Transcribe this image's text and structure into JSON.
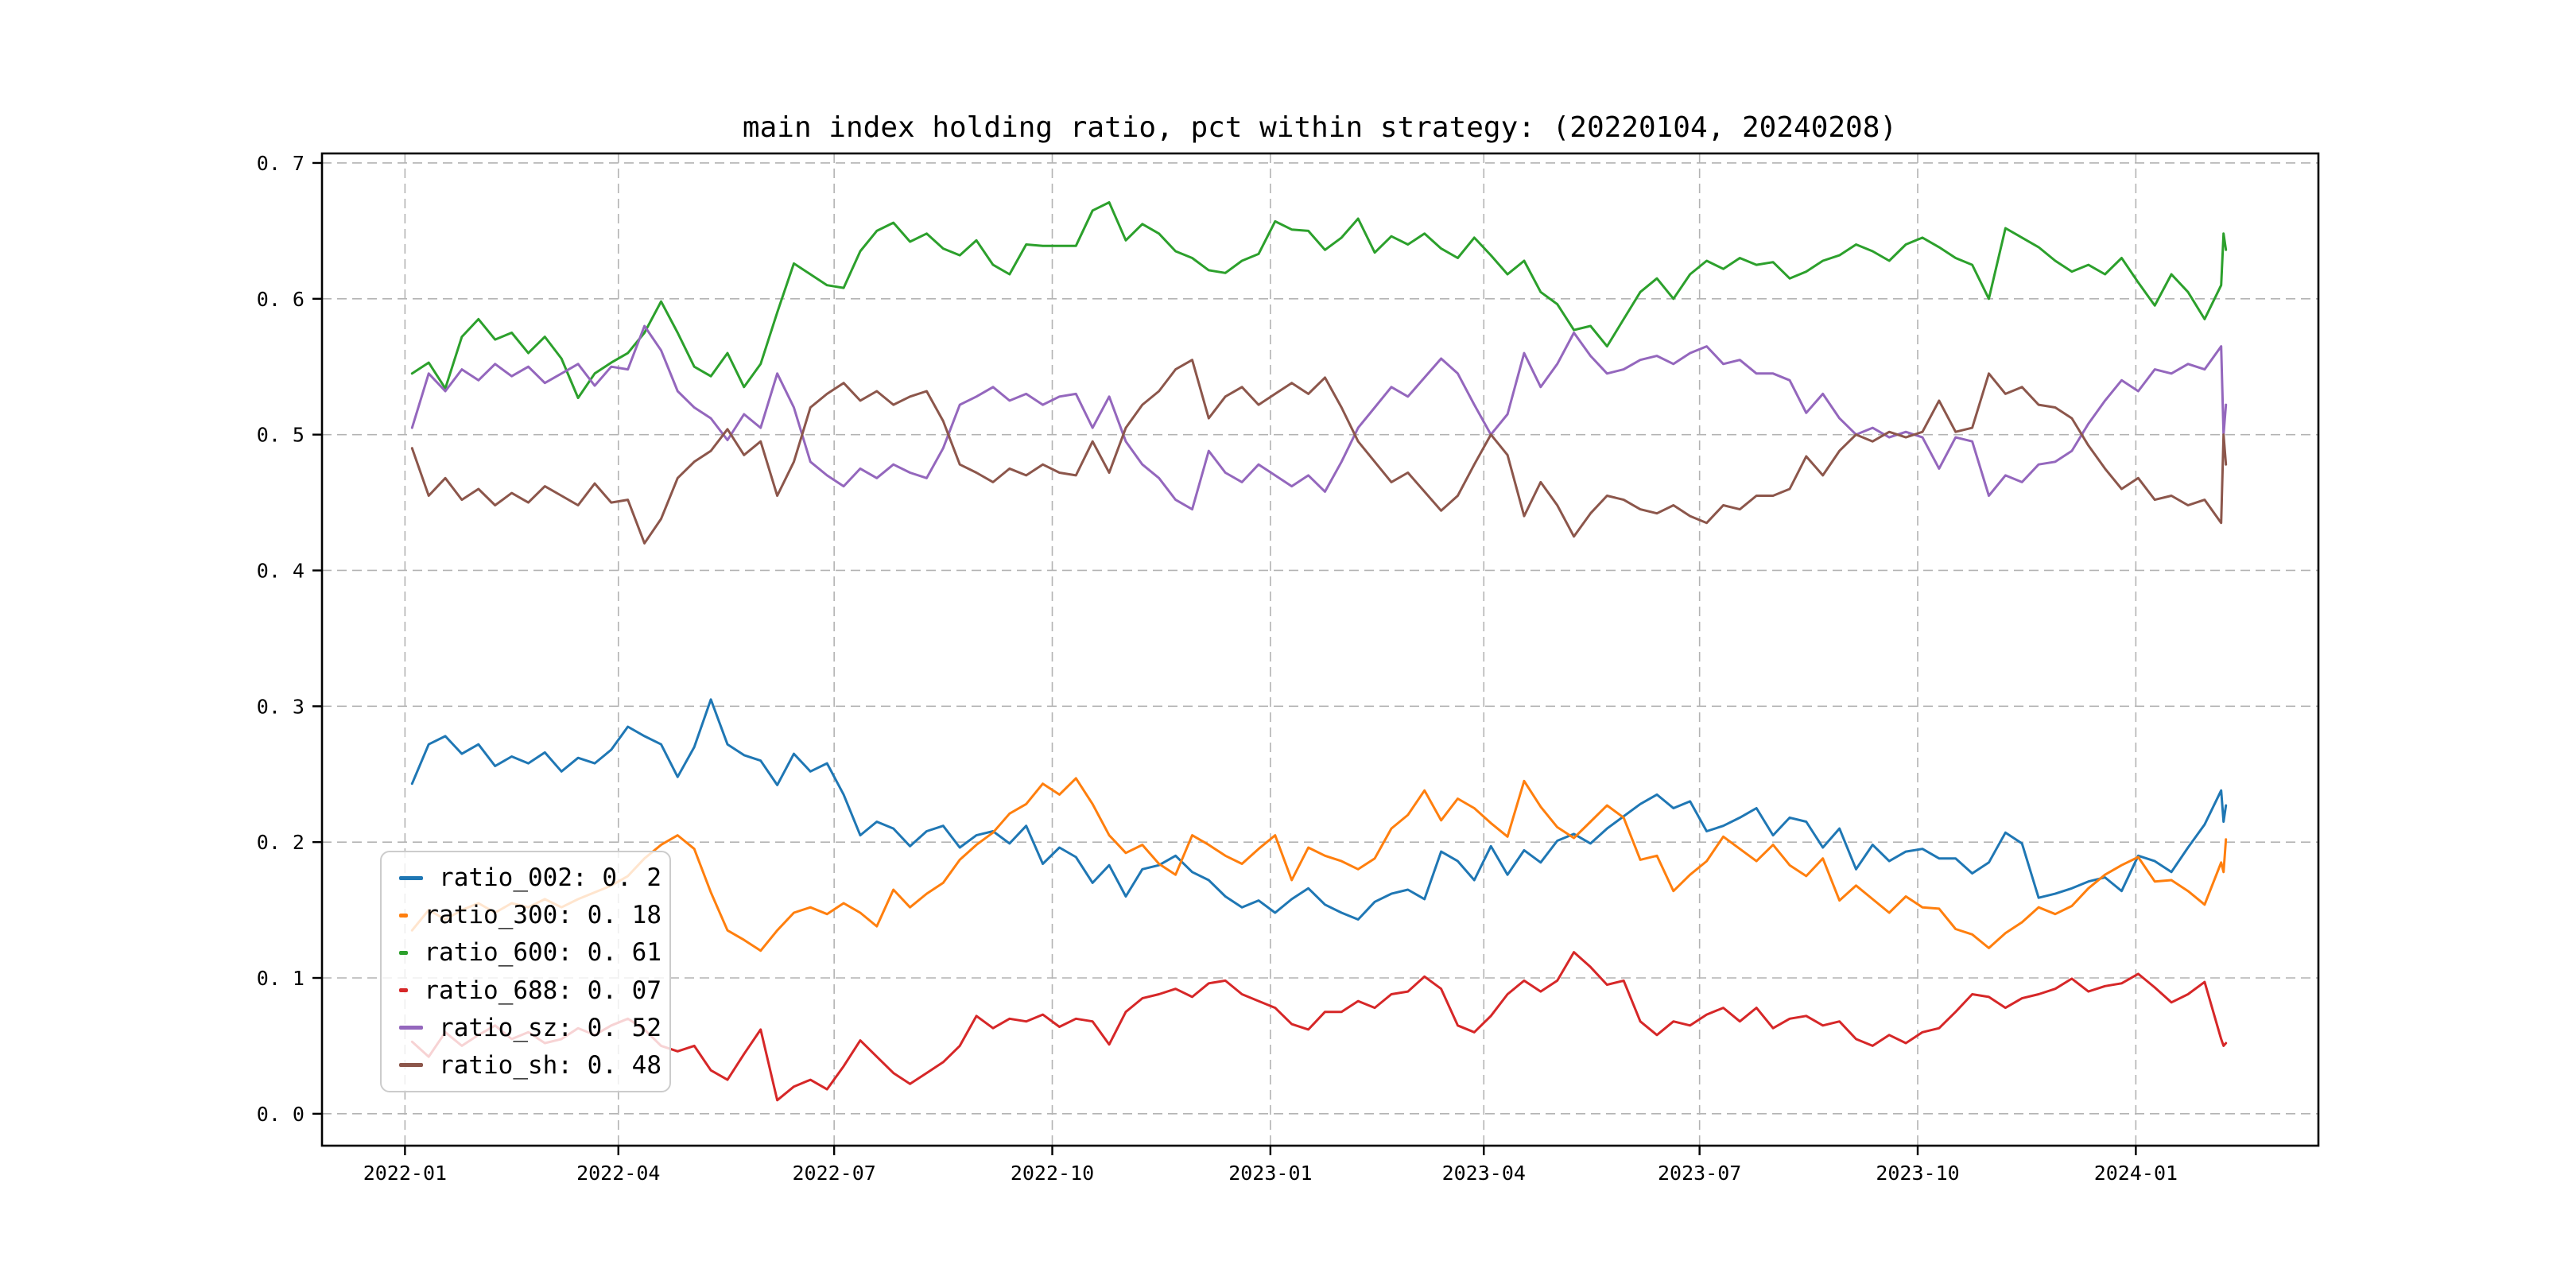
{
  "chart_data": {
    "type": "line",
    "title": "main index holding ratio, pct within strategy: (20220104, 20240208)",
    "date_range_shown_in_title": [
      "20220104",
      "20240208"
    ],
    "grid": "dashed",
    "legend_position": "lower-left",
    "xlabel": "",
    "ylabel": "",
    "xlim_days_since_2022_01_01": [
      -35,
      807
    ],
    "ylim": [
      -0.0235,
      0.707
    ],
    "x_ticks": [
      {
        "day": 0,
        "label": "2022-01"
      },
      {
        "day": 90,
        "label": "2022-04"
      },
      {
        "day": 181,
        "label": "2022-07"
      },
      {
        "day": 273,
        "label": "2022-10"
      },
      {
        "day": 365,
        "label": "2023-01"
      },
      {
        "day": 455,
        "label": "2023-04"
      },
      {
        "day": 546,
        "label": "2023-07"
      },
      {
        "day": 638,
        "label": "2023-10"
      },
      {
        "day": 730,
        "label": "2024-01"
      }
    ],
    "y_ticks": [
      {
        "value": 0.0,
        "label": "0. 0"
      },
      {
        "value": 0.1,
        "label": "0. 1"
      },
      {
        "value": 0.2,
        "label": "0. 2"
      },
      {
        "value": 0.3,
        "label": "0. 3"
      },
      {
        "value": 0.4,
        "label": "0. 4"
      },
      {
        "value": 0.5,
        "label": "0. 5"
      },
      {
        "value": 0.6,
        "label": "0. 6"
      },
      {
        "value": 0.7,
        "label": "0. 7"
      }
    ],
    "days": [
      3,
      10,
      17,
      24,
      31,
      38,
      45,
      52,
      59,
      66,
      73,
      80,
      87,
      94,
      101,
      108,
      115,
      122,
      129,
      136,
      143,
      150,
      157,
      164,
      171,
      178,
      185,
      192,
      199,
      206,
      213,
      220,
      227,
      234,
      241,
      248,
      255,
      262,
      269,
      276,
      283,
      290,
      297,
      304,
      311,
      318,
      325,
      332,
      339,
      346,
      353,
      360,
      367,
      374,
      381,
      388,
      395,
      402,
      409,
      416,
      423,
      430,
      437,
      444,
      451,
      458,
      465,
      472,
      479,
      486,
      493,
      500,
      507,
      514,
      521,
      528,
      535,
      542,
      549,
      556,
      563,
      570,
      577,
      584,
      591,
      598,
      605,
      612,
      619,
      626,
      633,
      640,
      647,
      654,
      661,
      668,
      675,
      682,
      689,
      696,
      703,
      710,
      717,
      724,
      731,
      738,
      745,
      752,
      759,
      766,
      767,
      768
    ],
    "series": [
      {
        "name": "ratio_002",
        "legend_label": "ratio_002: 0. 2",
        "color": "#1f77b4",
        "values": [
          0.243,
          0.272,
          0.278,
          0.265,
          0.272,
          0.256,
          0.263,
          0.258,
          0.266,
          0.252,
          0.262,
          0.258,
          0.268,
          0.285,
          0.278,
          0.272,
          0.248,
          0.27,
          0.305,
          0.272,
          0.264,
          0.26,
          0.242,
          0.265,
          0.252,
          0.258,
          0.235,
          0.205,
          0.215,
          0.21,
          0.197,
          0.208,
          0.212,
          0.196,
          0.205,
          0.208,
          0.199,
          0.212,
          0.184,
          0.196,
          0.189,
          0.17,
          0.183,
          0.16,
          0.18,
          0.183,
          0.19,
          0.178,
          0.172,
          0.16,
          0.152,
          0.157,
          0.148,
          0.158,
          0.166,
          0.154,
          0.148,
          0.143,
          0.156,
          0.162,
          0.165,
          0.158,
          0.193,
          0.186,
          0.172,
          0.197,
          0.176,
          0.194,
          0.185,
          0.201,
          0.206,
          0.199,
          0.21,
          0.219,
          0.228,
          0.235,
          0.225,
          0.23,
          0.208,
          0.212,
          0.218,
          0.225,
          0.205,
          0.218,
          0.215,
          0.196,
          0.21,
          0.18,
          0.198,
          0.186,
          0.193,
          0.195,
          0.188,
          0.188,
          0.177,
          0.185,
          0.207,
          0.199,
          0.159,
          0.162,
          0.166,
          0.171,
          0.174,
          0.164,
          0.19,
          0.186,
          0.178,
          0.196,
          0.213,
          0.238,
          0.215,
          0.227
        ]
      },
      {
        "name": "ratio_300",
        "legend_label": "ratio_300: 0. 18",
        "color": "#ff7f0e",
        "values": [
          0.135,
          0.15,
          0.143,
          0.15,
          0.155,
          0.148,
          0.155,
          0.152,
          0.158,
          0.152,
          0.158,
          0.163,
          0.168,
          0.175,
          0.188,
          0.198,
          0.205,
          0.195,
          0.163,
          0.135,
          0.128,
          0.12,
          0.135,
          0.148,
          0.152,
          0.147,
          0.155,
          0.148,
          0.138,
          0.165,
          0.152,
          0.162,
          0.17,
          0.187,
          0.198,
          0.207,
          0.221,
          0.228,
          0.243,
          0.235,
          0.247,
          0.228,
          0.205,
          0.192,
          0.198,
          0.184,
          0.176,
          0.205,
          0.198,
          0.19,
          0.184,
          0.195,
          0.205,
          0.172,
          0.196,
          0.19,
          0.186,
          0.18,
          0.188,
          0.21,
          0.22,
          0.238,
          0.216,
          0.232,
          0.225,
          0.214,
          0.204,
          0.245,
          0.226,
          0.211,
          0.203,
          0.215,
          0.227,
          0.218,
          0.187,
          0.19,
          0.164,
          0.176,
          0.186,
          0.204,
          0.195,
          0.186,
          0.198,
          0.183,
          0.175,
          0.188,
          0.157,
          0.168,
          0.158,
          0.148,
          0.16,
          0.152,
          0.151,
          0.136,
          0.132,
          0.122,
          0.133,
          0.141,
          0.152,
          0.147,
          0.153,
          0.166,
          0.176,
          0.183,
          0.189,
          0.171,
          0.172,
          0.164,
          0.154,
          0.185,
          0.178,
          0.202
        ]
      },
      {
        "name": "ratio_600",
        "legend_label": "ratio_600: 0. 61",
        "color": "#2ca02c",
        "values": [
          0.545,
          0.553,
          0.534,
          0.572,
          0.585,
          0.57,
          0.575,
          0.56,
          0.572,
          0.556,
          0.527,
          0.545,
          0.553,
          0.56,
          0.575,
          0.598,
          0.575,
          0.55,
          0.543,
          0.56,
          0.535,
          0.552,
          0.59,
          0.626,
          0.618,
          0.61,
          0.608,
          0.635,
          0.65,
          0.656,
          0.642,
          0.648,
          0.637,
          0.632,
          0.643,
          0.625,
          0.618,
          0.64,
          0.639,
          0.639,
          0.639,
          0.665,
          0.671,
          0.643,
          0.655,
          0.648,
          0.635,
          0.63,
          0.621,
          0.619,
          0.628,
          0.633,
          0.657,
          0.651,
          0.65,
          0.636,
          0.645,
          0.659,
          0.634,
          0.646,
          0.64,
          0.648,
          0.637,
          0.63,
          0.645,
          0.632,
          0.618,
          0.628,
          0.605,
          0.596,
          0.577,
          0.58,
          0.565,
          0.585,
          0.605,
          0.615,
          0.6,
          0.618,
          0.628,
          0.622,
          0.63,
          0.625,
          0.627,
          0.615,
          0.62,
          0.628,
          0.632,
          0.64,
          0.635,
          0.628,
          0.64,
          0.645,
          0.638,
          0.63,
          0.625,
          0.6,
          0.652,
          0.645,
          0.638,
          0.628,
          0.62,
          0.625,
          0.618,
          0.63,
          0.612,
          0.595,
          0.618,
          0.605,
          0.585,
          0.61,
          0.648,
          0.636
        ]
      },
      {
        "name": "ratio_688",
        "legend_label": "ratio_688: 0. 07",
        "color": "#d62728",
        "values": [
          0.053,
          0.042,
          0.06,
          0.05,
          0.058,
          0.065,
          0.055,
          0.06,
          0.052,
          0.055,
          0.063,
          0.058,
          0.065,
          0.07,
          0.062,
          0.05,
          0.046,
          0.05,
          0.032,
          0.025,
          0.044,
          0.062,
          0.01,
          0.02,
          0.025,
          0.018,
          0.035,
          0.054,
          0.042,
          0.03,
          0.022,
          0.03,
          0.038,
          0.05,
          0.072,
          0.063,
          0.07,
          0.068,
          0.073,
          0.064,
          0.07,
          0.068,
          0.051,
          0.075,
          0.085,
          0.088,
          0.092,
          0.086,
          0.096,
          0.098,
          0.088,
          0.083,
          0.078,
          0.066,
          0.062,
          0.075,
          0.075,
          0.083,
          0.078,
          0.088,
          0.09,
          0.101,
          0.092,
          0.065,
          0.06,
          0.072,
          0.088,
          0.098,
          0.09,
          0.098,
          0.119,
          0.108,
          0.095,
          0.098,
          0.068,
          0.058,
          0.068,
          0.065,
          0.073,
          0.078,
          0.068,
          0.078,
          0.063,
          0.07,
          0.072,
          0.065,
          0.068,
          0.055,
          0.05,
          0.058,
          0.052,
          0.06,
          0.063,
          0.075,
          0.088,
          0.086,
          0.078,
          0.085,
          0.088,
          0.092,
          0.0995,
          0.09,
          0.094,
          0.096,
          0.103,
          0.093,
          0.082,
          0.088,
          0.097,
          0.055,
          0.05,
          0.052
        ]
      },
      {
        "name": "ratio_sz",
        "legend_label": "ratio_sz: 0. 52",
        "color": "#9467bd",
        "values": [
          0.505,
          0.545,
          0.532,
          0.548,
          0.54,
          0.552,
          0.543,
          0.55,
          0.538,
          0.545,
          0.552,
          0.536,
          0.55,
          0.548,
          0.58,
          0.562,
          0.532,
          0.52,
          0.512,
          0.496,
          0.515,
          0.505,
          0.545,
          0.52,
          0.48,
          0.47,
          0.462,
          0.475,
          0.468,
          0.478,
          0.472,
          0.468,
          0.49,
          0.522,
          0.528,
          0.535,
          0.525,
          0.53,
          0.522,
          0.528,
          0.53,
          0.505,
          0.528,
          0.495,
          0.478,
          0.468,
          0.452,
          0.445,
          0.488,
          0.472,
          0.465,
          0.478,
          0.47,
          0.462,
          0.47,
          0.458,
          0.48,
          0.505,
          0.52,
          0.535,
          0.528,
          0.542,
          0.556,
          0.545,
          0.522,
          0.5,
          0.515,
          0.56,
          0.535,
          0.552,
          0.575,
          0.558,
          0.545,
          0.548,
          0.555,
          0.558,
          0.552,
          0.56,
          0.565,
          0.552,
          0.555,
          0.545,
          0.545,
          0.54,
          0.516,
          0.53,
          0.512,
          0.5,
          0.505,
          0.498,
          0.502,
          0.498,
          0.475,
          0.498,
          0.495,
          0.455,
          0.47,
          0.465,
          0.478,
          0.48,
          0.488,
          0.508,
          0.525,
          0.54,
          0.532,
          0.548,
          0.545,
          0.552,
          0.548,
          0.565,
          0.5,
          0.522
        ]
      },
      {
        "name": "ratio_sh",
        "legend_label": "ratio_sh: 0. 48",
        "color": "#8c564b",
        "values": [
          0.49,
          0.455,
          0.468,
          0.452,
          0.46,
          0.448,
          0.457,
          0.45,
          0.462,
          0.455,
          0.448,
          0.464,
          0.45,
          0.452,
          0.42,
          0.438,
          0.468,
          0.48,
          0.488,
          0.504,
          0.485,
          0.495,
          0.455,
          0.48,
          0.52,
          0.53,
          0.538,
          0.525,
          0.532,
          0.522,
          0.528,
          0.532,
          0.51,
          0.478,
          0.472,
          0.465,
          0.475,
          0.47,
          0.478,
          0.472,
          0.47,
          0.495,
          0.472,
          0.505,
          0.522,
          0.532,
          0.548,
          0.555,
          0.512,
          0.528,
          0.535,
          0.522,
          0.53,
          0.538,
          0.53,
          0.542,
          0.52,
          0.495,
          0.48,
          0.465,
          0.472,
          0.458,
          0.444,
          0.455,
          0.478,
          0.5,
          0.485,
          0.44,
          0.465,
          0.448,
          0.425,
          0.442,
          0.455,
          0.452,
          0.445,
          0.442,
          0.448,
          0.44,
          0.435,
          0.448,
          0.445,
          0.455,
          0.455,
          0.46,
          0.484,
          0.47,
          0.488,
          0.5,
          0.495,
          0.502,
          0.498,
          0.502,
          0.525,
          0.502,
          0.505,
          0.545,
          0.53,
          0.535,
          0.522,
          0.52,
          0.512,
          0.492,
          0.475,
          0.46,
          0.468,
          0.452,
          0.455,
          0.448,
          0.452,
          0.435,
          0.5,
          0.478
        ]
      }
    ]
  }
}
